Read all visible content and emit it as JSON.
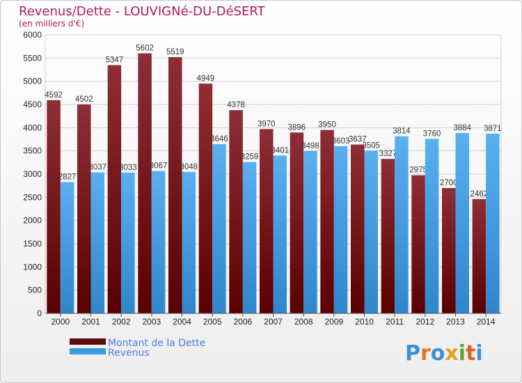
{
  "chart_data": {
    "type": "bar",
    "title": "Revenus/Dette - LOUVIGNé-DU-DéSERT",
    "subtitle": "(en milliers d'€)",
    "categories": [
      "2000",
      "2001",
      "2002",
      "2003",
      "2004",
      "2005",
      "2006",
      "2007",
      "2008",
      "2009",
      "2010",
      "2011",
      "2012",
      "2013",
      "2014"
    ],
    "series": [
      {
        "name": "Montant de la Dette",
        "color": "#8b1a1a",
        "values": [
          4592,
          4502,
          5347,
          5602,
          5519,
          4949,
          4378,
          3970,
          3896,
          3950,
          3637,
          3327,
          2975,
          2700,
          2462
        ]
      },
      {
        "name": "Revenus",
        "color": "#3a9ae0",
        "values": [
          2827,
          3037,
          3033,
          3067,
          3048,
          3646,
          3259,
          3401,
          3498,
          3603,
          3505,
          3814,
          3760,
          3884,
          3871
        ]
      }
    ],
    "ylim": [
      0,
      6000
    ],
    "yticks": [
      0,
      500,
      1000,
      1500,
      2000,
      2500,
      3000,
      3500,
      4000,
      4500,
      5000,
      5500,
      6000
    ],
    "grid": true,
    "legend_position": "bottom-left"
  },
  "logo": {
    "text": "Proxiti"
  }
}
